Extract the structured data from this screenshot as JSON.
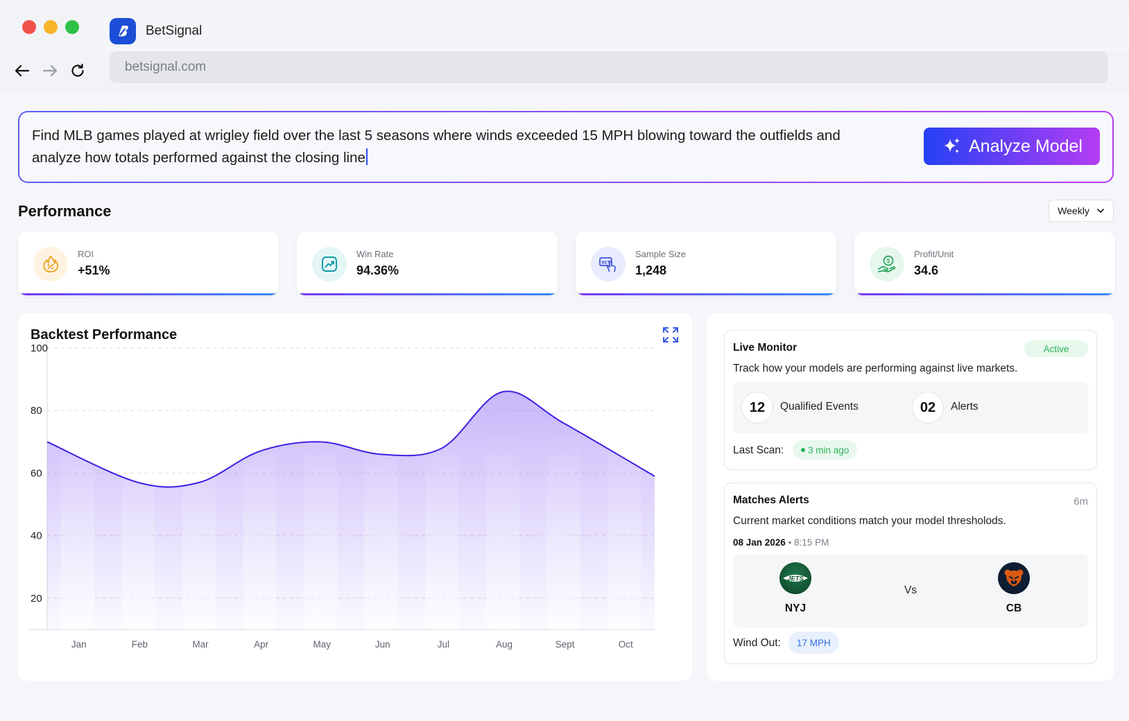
{
  "browser": {
    "tab_title": "BetSignal",
    "url": "betsignal.com"
  },
  "query": {
    "text": "Find MLB games played at wrigley field over the last 5 seasons where winds exceeded 15 MPH blowing toward the outfields and analyze how totals performed against the closing line",
    "button_label": "Analyze Model"
  },
  "performance": {
    "title": "Performance",
    "period": "Weekly",
    "kpis": [
      {
        "label": "ROI",
        "value": "+51%",
        "icon": "roi-flame-icon"
      },
      {
        "label": "Win Rate",
        "value": "94.36%",
        "icon": "trend-up-icon"
      },
      {
        "label": "Sample Size",
        "value": "1,248",
        "icon": "bet-ticket-icon"
      },
      {
        "label": "Profit/Unit",
        "value": "34.6",
        "icon": "money-hand-icon"
      }
    ]
  },
  "chart_data": {
    "type": "area",
    "title": "Backtest Performance",
    "categories": [
      "Jan",
      "Feb",
      "Mar",
      "Apr",
      "May",
      "Jun",
      "Jul",
      "Aug",
      "Sept",
      "Oct"
    ],
    "values": [
      70,
      57,
      57,
      67,
      70,
      66,
      68,
      86,
      76,
      59
    ],
    "ylim": [
      10,
      100
    ],
    "yticks": [
      100,
      80,
      60,
      40,
      20
    ],
    "grid": true,
    "line_color": "#3f1fe0",
    "fill_color": "#9b7df5"
  },
  "live_monitor": {
    "title": "Live Monitor",
    "status": "Active",
    "description": "Track how your models are performing against live markets.",
    "qualified_events": "12",
    "qualified_label": "Qualified Events",
    "alerts": "02",
    "alerts_label": "Alerts",
    "last_scan_label": "Last Scan:",
    "last_scan": "3 min ago"
  },
  "match_alerts": {
    "title": "Matches Alerts",
    "age": "6m",
    "description": "Current market conditions match your model thresholods.",
    "date": "08 Jan 2026",
    "time": "8:15 PM",
    "home_team": "NYJ",
    "away_team": "CB",
    "vs": "Vs",
    "home_logo_text": "JETS",
    "wind_label": "Wind Out:",
    "wind_value": "17 MPH"
  },
  "colors": {
    "accent": "#2541f5",
    "accent2": "#b43df3",
    "active_green": "#2bb35a"
  }
}
